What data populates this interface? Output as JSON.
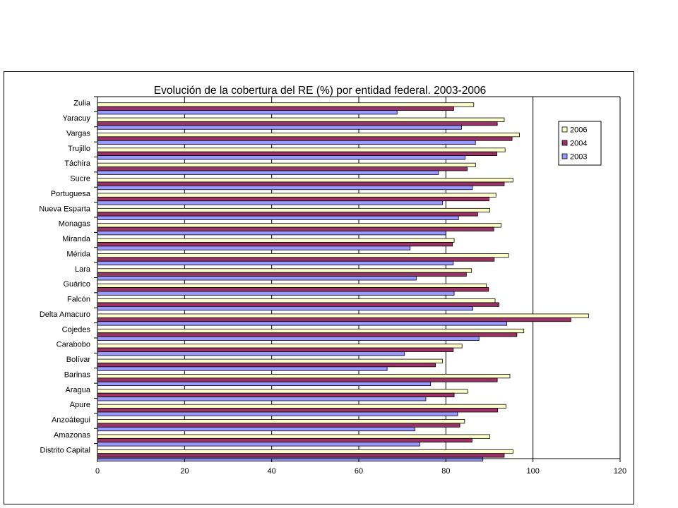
{
  "chart_data": {
    "type": "bar",
    "orientation": "horizontal",
    "title": "Evolución de la cobertura del RE (%) por entidad federal.  2003-2006",
    "xlabel": "",
    "ylabel": "",
    "xlim": [
      0,
      120
    ],
    "xticks": [
      "0",
      "20",
      "40",
      "60",
      "80",
      "100",
      "120"
    ],
    "grid": true,
    "legend_position": "right",
    "categories": [
      "Zulia",
      "Yaracuy",
      "Vargas",
      "Trujillo",
      "Táchira",
      "Sucre",
      "Portuguesa",
      "Nueva Esparta",
      "Monagas",
      "Miranda",
      "Mérida",
      "Lara",
      "Guárico",
      "Falcón",
      "Delta Amacuro",
      "Cojedes",
      "Carabobo",
      "Bolívar",
      "Barinas",
      "Aragua",
      "Apure",
      "Anzoátegui",
      "Amazonas",
      "Distrito Capital"
    ],
    "series": [
      {
        "name": "2006",
        "color": "#FFFFCC",
        "values": [
          86.4,
          93.4,
          96.9,
          93.6,
          86.8,
          95.4,
          91.5,
          90.1,
          92.7,
          81.9,
          94.4,
          85.9,
          89.3,
          91.3,
          112.8,
          97.9,
          83.7,
          79.2,
          94.7,
          85.0,
          93.8,
          84.3,
          90.1,
          95.4
        ]
      },
      {
        "name": "2004",
        "color": "#993366",
        "values": [
          81.8,
          91.8,
          95.2,
          91.7,
          84.9,
          93.4,
          89.9,
          87.3,
          91.0,
          81.5,
          91.1,
          84.7,
          89.8,
          92.2,
          108.7,
          96.3,
          81.7,
          77.6,
          91.8,
          81.9,
          91.9,
          83.2,
          86.0,
          93.4
        ]
      },
      {
        "name": "2003",
        "color": "#9999FF",
        "values": [
          68.8,
          83.6,
          86.8,
          84.4,
          78.3,
          86.1,
          79.2,
          82.9,
          80.0,
          71.8,
          81.7,
          73.2,
          81.9,
          86.2,
          94.0,
          87.6,
          70.5,
          66.5,
          76.5,
          75.4,
          82.7,
          72.9,
          74.0,
          88.5
        ]
      }
    ]
  }
}
